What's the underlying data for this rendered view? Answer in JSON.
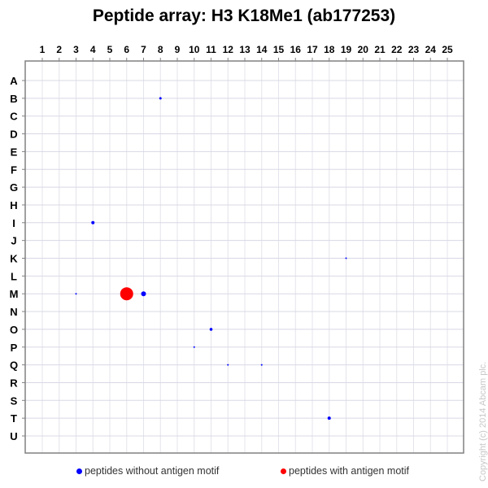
{
  "title": "Peptide array:  H3 K18Me1 (ab177253)",
  "copyright": "Copyright (c) 2014 Abcam plc.",
  "legend": [
    {
      "label": "peptides without antigen motif",
      "color": "#0000ff"
    },
    {
      "label": "peptides with antigen motif",
      "color": "#ff0000"
    }
  ],
  "colors": {
    "frame": "#808080",
    "grid": "#e4e4ec",
    "grid_row": "#d8d8e6",
    "no_motif": "#0000ff",
    "with_motif": "#ff0000",
    "copyright": "#c8c8c8"
  },
  "chart_data": {
    "type": "scatter",
    "title": "Peptide array:  H3 K18Me1 (ab177253)",
    "xlabel": "",
    "ylabel": "",
    "x_ticks": [
      "1",
      "2",
      "3",
      "4",
      "5",
      "6",
      "7",
      "8",
      "9",
      "10",
      "11",
      "12",
      "13",
      "14",
      "15",
      "16",
      "17",
      "18",
      "19",
      "20",
      "21",
      "22",
      "23",
      "24",
      "25"
    ],
    "y_ticks": [
      "A",
      "B",
      "C",
      "D",
      "E",
      "F",
      "G",
      "H",
      "I",
      "J",
      "K",
      "L",
      "M",
      "N",
      "O",
      "P",
      "Q",
      "R",
      "S",
      "T",
      "U"
    ],
    "x_axis_position": "top",
    "grid": true,
    "legend_position": "bottom",
    "size_meaning": "relative signal intensity",
    "series": [
      {
        "name": "peptides without antigen motif",
        "color": "#0000ff",
        "points": [
          {
            "row": "B",
            "col": 8,
            "size": 1.5
          },
          {
            "row": "I",
            "col": 4,
            "size": 2
          },
          {
            "row": "K",
            "col": 19,
            "size": 1
          },
          {
            "row": "M",
            "col": 3,
            "size": 1
          },
          {
            "row": "M",
            "col": 7,
            "size": 3
          },
          {
            "row": "O",
            "col": 11,
            "size": 1.8
          },
          {
            "row": "P",
            "col": 10,
            "size": 1
          },
          {
            "row": "Q",
            "col": 12,
            "size": 1
          },
          {
            "row": "Q",
            "col": 14,
            "size": 1
          },
          {
            "row": "T",
            "col": 18,
            "size": 2
          }
        ]
      },
      {
        "name": "peptides with antigen motif",
        "color": "#ff0000",
        "points": [
          {
            "row": "M",
            "col": 6,
            "size": 8
          }
        ]
      }
    ]
  }
}
